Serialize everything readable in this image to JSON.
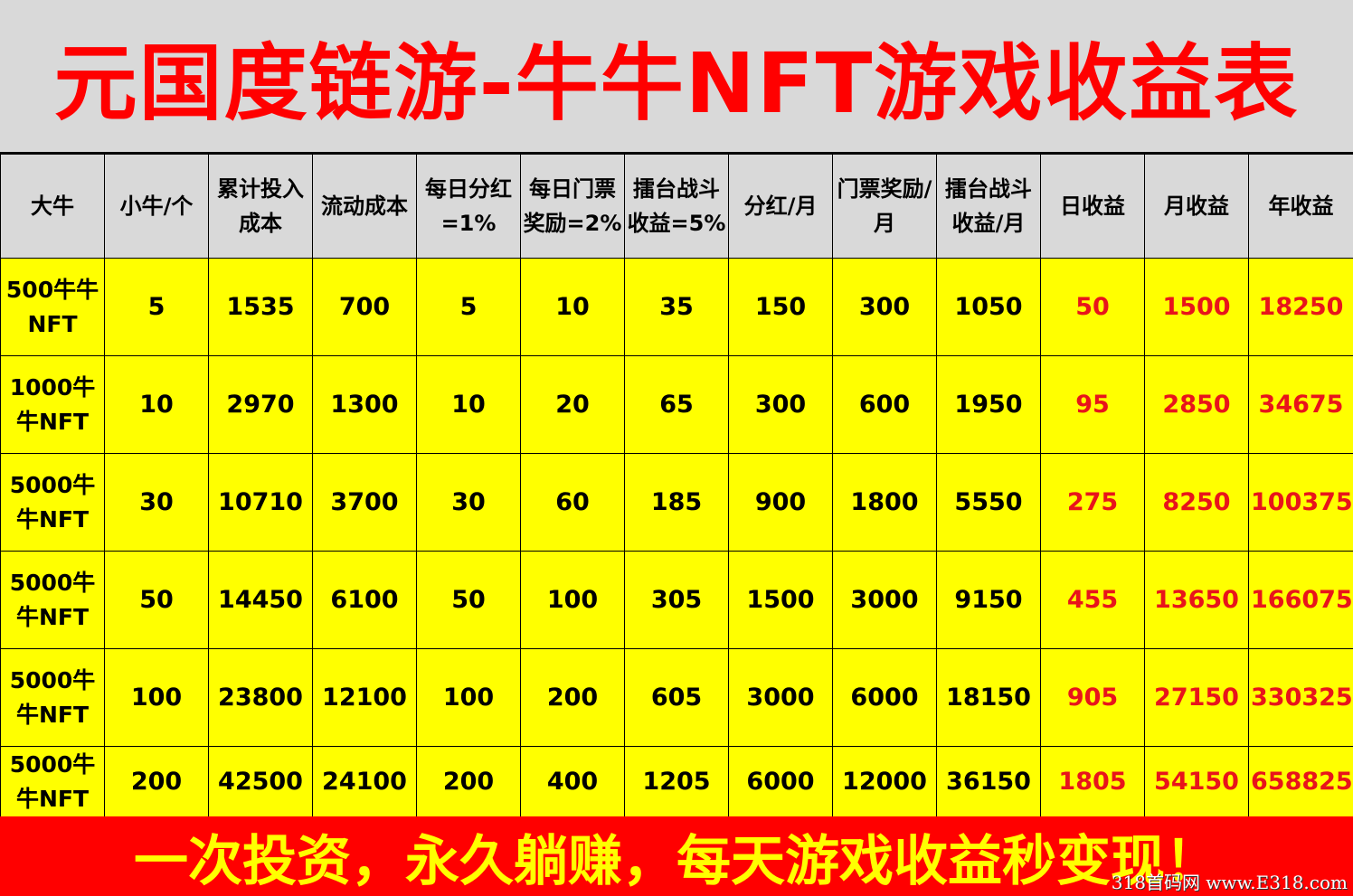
{
  "title": "元国度链游-牛牛NFT游戏收益表",
  "headers": [
    "大牛",
    "小牛/个",
    "累计投入成本",
    "流动成本",
    "每日分红=1%",
    "每日门票奖励=2%",
    "擂台战斗收益=5%",
    "分红/月",
    "门票奖励/月",
    "擂台战斗收益/月",
    "日收益",
    "月收益",
    "年收益"
  ],
  "rows": [
    [
      "500牛牛NFT",
      "5",
      "1535",
      "700",
      "5",
      "10",
      "35",
      "150",
      "300",
      "1050",
      "50",
      "1500",
      "18250"
    ],
    [
      "1000牛牛NFT",
      "10",
      "2970",
      "1300",
      "10",
      "20",
      "65",
      "300",
      "600",
      "1950",
      "95",
      "2850",
      "34675"
    ],
    [
      "5000牛牛NFT",
      "30",
      "10710",
      "3700",
      "30",
      "60",
      "185",
      "900",
      "1800",
      "5550",
      "275",
      "8250",
      "100375"
    ],
    [
      "5000牛牛NFT",
      "50",
      "14450",
      "6100",
      "50",
      "100",
      "305",
      "1500",
      "3000",
      "9150",
      "455",
      "13650",
      "166075"
    ],
    [
      "5000牛牛NFT",
      "100",
      "23800",
      "12100",
      "100",
      "200",
      "605",
      "3000",
      "6000",
      "18150",
      "905",
      "27150",
      "330325"
    ],
    [
      "5000牛牛NFT",
      "200",
      "42500",
      "24100",
      "200",
      "400",
      "1205",
      "6000",
      "12000",
      "36150",
      "1805",
      "54150",
      "658825"
    ]
  ],
  "footer": {
    "slogan": "一次投资，永久躺赚，每天游戏收益秒变现！",
    "watermark": "318首码网 www.E318.com"
  },
  "colors": {
    "title_text": "#ff0000",
    "header_bg": "#d9d9d9",
    "cell_bg": "#ffff00",
    "income_text": "#e8141b",
    "footer_bg": "#ff0000",
    "footer_text": "#ffff00"
  }
}
